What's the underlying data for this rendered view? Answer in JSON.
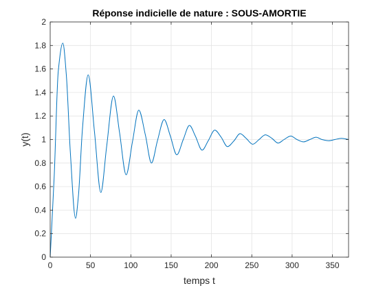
{
  "chart_data": {
    "type": "line",
    "title": "Réponse indicielle de nature : SOUS-AMORTIE",
    "xlabel": "temps t",
    "ylabel": "y(t)",
    "xlim": [
      0,
      370
    ],
    "ylim": [
      0,
      2
    ],
    "xticks": [
      0,
      50,
      100,
      150,
      200,
      250,
      300,
      350
    ],
    "yticks": [
      0,
      0.2,
      0.4,
      0.6,
      0.8,
      1,
      1.2,
      1.4,
      1.6,
      1.8,
      2
    ],
    "xtick_labels": [
      "0",
      "50",
      "100",
      "150",
      "200",
      "250",
      "300",
      "350"
    ],
    "ytick_labels": [
      "0",
      "0.2",
      "0.4",
      "0.6",
      "0.8",
      "1",
      "1.2",
      "1.4",
      "1.6",
      "1.8",
      "2"
    ],
    "grid": true,
    "colors": {
      "line": "#0072BD",
      "grid": "#e3e3e3",
      "axis": "#262626"
    },
    "series": [
      {
        "name": "",
        "x": [
          0,
          5,
          10,
          15.7,
          20,
          25,
          31.4,
          35,
          40,
          47.1,
          55,
          62.8,
          70,
          78.5,
          86,
          94.2,
          102,
          109.9,
          118,
          125.6,
          133,
          141.3,
          149,
          157,
          165,
          172.7,
          180,
          188.4,
          196,
          204.1,
          212,
          219.8,
          228,
          235.5,
          243,
          251.2,
          259,
          266.9,
          275,
          282.6,
          290,
          298.3,
          306,
          314,
          322,
          329.7,
          337,
          345.4,
          353,
          361.1,
          370
        ],
        "y": [
          0,
          0.69,
          1.58,
          1.82,
          1.55,
          0.89,
          0.33,
          0.52,
          1.09,
          1.55,
          1.06,
          0.55,
          0.94,
          1.37,
          1.06,
          0.7,
          0.98,
          1.25,
          1.04,
          0.8,
          0.99,
          1.17,
          1.03,
          0.87,
          1.0,
          1.12,
          1.03,
          0.91,
          0.99,
          1.08,
          1.02,
          0.94,
          0.99,
          1.05,
          1.01,
          0.96,
          1.0,
          1.04,
          1.01,
          0.97,
          1.0,
          1.03,
          1.0,
          0.98,
          1.0,
          1.02,
          1.0,
          0.99,
          1.0,
          1.01,
          1.0
        ]
      }
    ]
  }
}
